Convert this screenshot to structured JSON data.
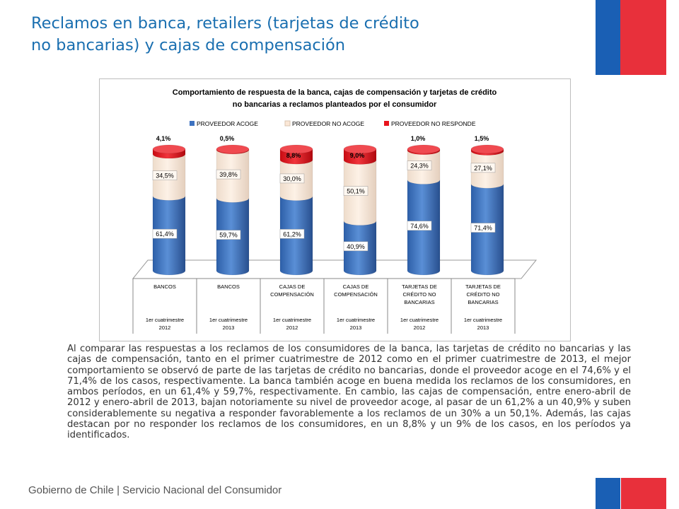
{
  "title_line1": "Reclamos en banca, retailers (tarjetas de crédito",
  "title_line2": "no bancarias) y cajas de compensación",
  "chart_data": {
    "type": "bar",
    "stacked": true,
    "style": "3d-cylinder",
    "title_line1": "Comportamiento de respuesta de la banca, cajas de compensación y tarjetas de crédito",
    "title_line2": "no bancarias a reclamos planteados por el consumidor",
    "legend_position": "top",
    "categories": [
      {
        "label": [
          "BANCOS"
        ],
        "period": [
          "1er cuatrimestre",
          "2012"
        ]
      },
      {
        "label": [
          "BANCOS"
        ],
        "period": [
          "1er cuatrimestre",
          "2013"
        ]
      },
      {
        "label": [
          "CAJAS DE",
          "COMPENSACIÓN"
        ],
        "period": [
          "1er cuatrimestre",
          "2012"
        ]
      },
      {
        "label": [
          "CAJAS DE",
          "COMPENSACIÓN"
        ],
        "period": [
          "1er cuatrimestre",
          "2013"
        ]
      },
      {
        "label": [
          "TARJETAS DE",
          "CRÉDITO NO",
          "BANCARIAS"
        ],
        "period": [
          "1er cuatrimestre",
          "2012"
        ]
      },
      {
        "label": [
          "TARJETAS DE",
          "CRÉDITO NO",
          "BANCARIAS"
        ],
        "period": [
          "1er cuatrimestre",
          "2013"
        ]
      }
    ],
    "series": [
      {
        "name": "PROVEEDOR ACOGE",
        "color": "#3d72c0",
        "values": [
          61.4,
          59.7,
          61.2,
          40.9,
          74.6,
          71.4
        ],
        "labels": [
          "61,4%",
          "59,7%",
          "61,2%",
          "40,9%",
          "74,6%",
          "71,4%"
        ]
      },
      {
        "name": "PROVEEDOR NO ACOGE",
        "color": "#fbe7d6",
        "values": [
          34.5,
          39.8,
          30.0,
          50.1,
          24.3,
          27.1
        ],
        "labels": [
          "34,5%",
          "39,8%",
          "30,0%",
          "50,1%",
          "24,3%",
          "27,1%"
        ]
      },
      {
        "name": "PROVEEDOR NO RESPONDE",
        "color": "#e8141c",
        "values": [
          4.1,
          0.5,
          8.8,
          9.0,
          1.0,
          1.5
        ],
        "labels": [
          "4,1%",
          "0,5%",
          "8,8%",
          "9,0%",
          "1,0%",
          "1,5%"
        ]
      }
    ]
  },
  "body_text": "Al comparar las respuestas a los reclamos de los consumidores de la banca, las tarjetas de crédito no bancarias y las cajas de compensación, tanto en el primer cuatrimestre de 2012 como en el primer cuatrimestre de 2013, el mejor comportamiento se observó de parte de las tarjetas de crédito no bancarias, donde el proveedor acoge en el 74,6% y el 71,4% de los casos, respectivamente. La banca también acoge en buena medida los reclamos de los consumidores, en ambos períodos, en un 61,4% y 59,7%, respectivamente. En cambio, las cajas de compensación, entre enero-abril de 2012 y enero-abril de 2013, bajan notoriamente su nivel de proveedor acoge, al pasar de un 61,2% a un 40,9% y suben considerablemente su negativa a responder favorablemente a los reclamos de un 30% a un 50,1%. Además, las cajas destacan por no responder los reclamos de los consumidores, en un 8,8% y un 9% de los casos, en los períodos ya identificados.",
  "footer": "Gobierno de Chile | Servicio Nacional del Consumidor"
}
